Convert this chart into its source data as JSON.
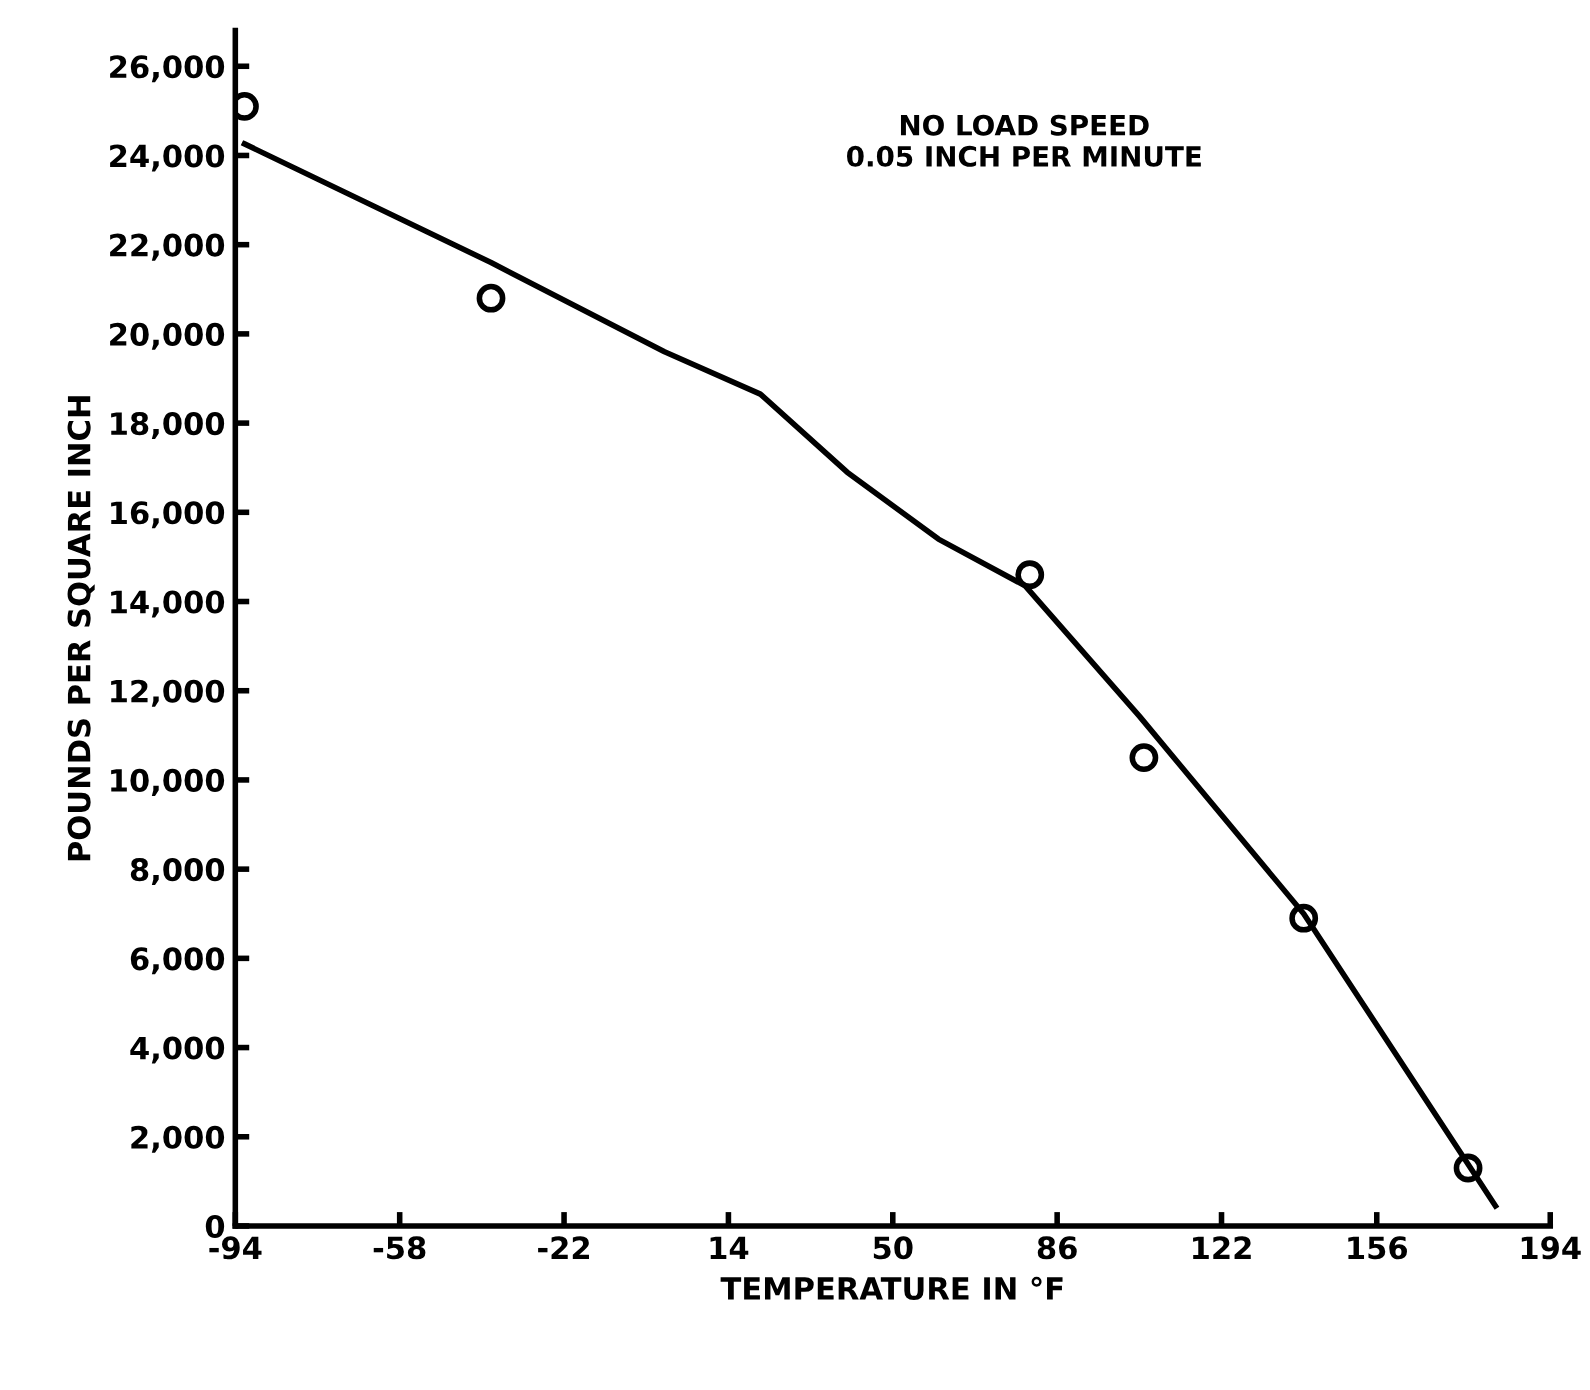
{
  "chart_data": {
    "type": "scatter",
    "xlabel": "TEMPERATURE IN °F",
    "ylabel": "POUNDS PER SQUARE INCH",
    "annotations": [
      "NO LOAD SPEED\n0.05 INCH PER MINUTE"
    ],
    "xlim": [
      -94,
      194
    ],
    "ylim": [
      0,
      26800
    ],
    "xticks": [
      -94,
      -58,
      -22,
      14,
      50,
      86,
      122,
      156,
      194
    ],
    "yticks": [
      {
        "value": 0,
        "label": "0"
      },
      {
        "value": 2000,
        "label": "2,000"
      },
      {
        "value": 4000,
        "label": "4,000"
      },
      {
        "value": 6000,
        "label": "6,000"
      },
      {
        "value": 8000,
        "label": "8,000"
      },
      {
        "value": 10000,
        "label": "10,000"
      },
      {
        "value": 12000,
        "label": "12,000"
      },
      {
        "value": 14000,
        "label": "14,000"
      },
      {
        "value": 16000,
        "label": "16,000"
      },
      {
        "value": 18000,
        "label": "18,000"
      },
      {
        "value": 20000,
        "label": "20,000"
      },
      {
        "value": 22000,
        "label": "22,000"
      },
      {
        "value": 24000,
        "label": "24,000"
      },
      {
        "value": 26000,
        "label": "26,000"
      }
    ],
    "grid": false,
    "series": [
      {
        "marker": "circle",
        "color": "#000000",
        "x": [
          -92,
          -38,
          80,
          105,
          140,
          176
        ],
        "values": [
          25100,
          20800,
          14600,
          10500,
          6900,
          1300
        ]
      },
      {
        "type": "line",
        "marker": "none",
        "line_style": "solid",
        "color": "#000000",
        "x": [
          -92,
          -38,
          0,
          21,
          40,
          60,
          79,
          104,
          140,
          182
        ],
        "values": [
          24260,
          21600,
          19600,
          18650,
          16900,
          15400,
          14350,
          11430,
          7000,
          450
        ]
      }
    ]
  }
}
